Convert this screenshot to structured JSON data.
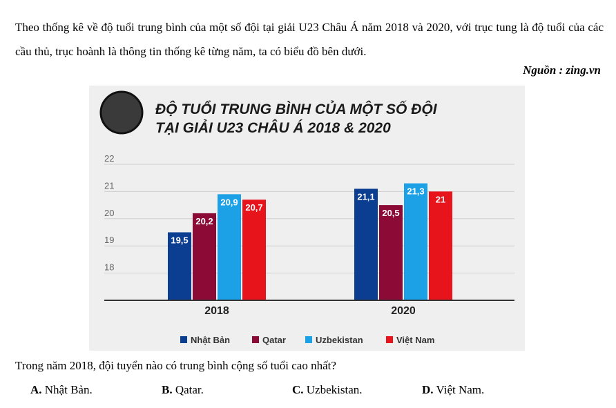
{
  "intro_text": "Theo thống kê về độ tuổi trung bình của một số đội tại giải U23 Châu Á năm 2018 và 2020, với trục tung là độ tuổi của các cầu thủ, trục hoành là thông tin thống kê từng năm, ta có biểu đồ bên dưới.",
  "source": "Nguồn : zing.vn",
  "question": "Trong năm 2018, đội tuyển nào có trung bình cộng số tuổi cao nhất?",
  "options": [
    {
      "letter": "A.",
      "text": "Nhật Bản."
    },
    {
      "letter": "B.",
      "text": "Qatar."
    },
    {
      "letter": "C.",
      "text": "Uzbekistan."
    },
    {
      "letter": "D.",
      "text": "Việt Nam."
    }
  ],
  "chart_data": {
    "type": "bar",
    "title_lines": [
      "ĐỘ TUỔI TRUNG BÌNH CỦA MỘT SỐ ĐỘI",
      "TẠI GIẢI U23 CHÂU Á 2018 & 2020"
    ],
    "categories": [
      "2018",
      "2020"
    ],
    "series": [
      {
        "name": "Nhật Bản",
        "color": "#0b3d91",
        "values": [
          19.5,
          21.1
        ],
        "labels": [
          "19,5",
          "21,1"
        ]
      },
      {
        "name": "Qatar",
        "color": "#8c0a36",
        "values": [
          20.2,
          20.5
        ],
        "labels": [
          "20,2",
          "20,5"
        ]
      },
      {
        "name": "Uzbekistan",
        "color": "#1da1e6",
        "values": [
          20.9,
          21.3
        ],
        "labels": [
          "20,9",
          "21,3"
        ]
      },
      {
        "name": "Việt Nam",
        "color": "#e8141c",
        "values": [
          20.7,
          21
        ],
        "labels": [
          "20,7",
          "21"
        ]
      }
    ],
    "yticks": [
      "22",
      "21",
      "20",
      "19",
      "18"
    ],
    "ylim": [
      17,
      22
    ],
    "grid": true,
    "legend": "bottom",
    "xlabel": "",
    "ylabel": ""
  }
}
